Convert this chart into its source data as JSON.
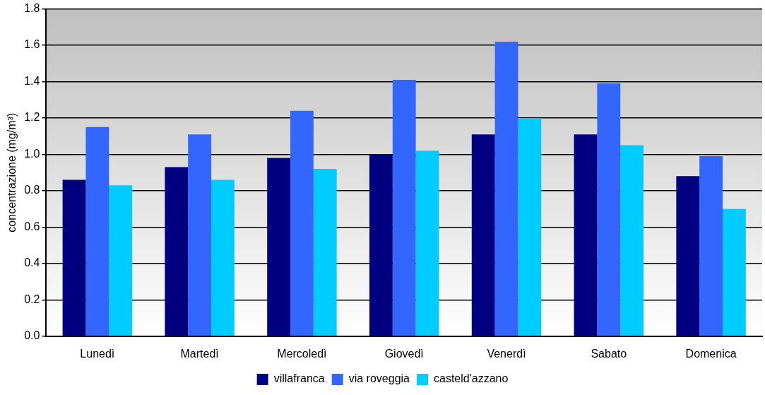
{
  "chart_data": {
    "type": "bar",
    "ylabel": "concentrazione (mg/m³)",
    "categories": [
      "Lunedì",
      "Martedì",
      "Mercoledì",
      "Giovedì",
      "Venerdì",
      "Sabato",
      "Domenica"
    ],
    "series": [
      {
        "name": "villafranca",
        "color": "#000080",
        "values": [
          0.86,
          0.93,
          0.98,
          1.0,
          1.11,
          1.11,
          0.88
        ]
      },
      {
        "name": "via roveggia",
        "color": "#3366ff",
        "values": [
          1.15,
          1.11,
          1.24,
          1.41,
          1.62,
          1.39,
          0.99
        ]
      },
      {
        "name": "casteld'azzano",
        "color": "#00ccff",
        "values": [
          0.83,
          0.86,
          0.92,
          1.02,
          1.2,
          1.05,
          0.7
        ]
      }
    ],
    "ylim": [
      0,
      1.8
    ],
    "yticks": [
      {
        "value": 0,
        "label": "0.0"
      },
      {
        "value": 0.2,
        "label": "0.2"
      },
      {
        "value": 0.4,
        "label": "0.4"
      },
      {
        "value": 0.6,
        "label": "0.6"
      },
      {
        "value": 0.8,
        "label": "0.8"
      },
      {
        "value": 1,
        "label": "1.0"
      },
      {
        "value": 1.2,
        "label": "1.2"
      },
      {
        "value": 1.4,
        "label": "1.4"
      },
      {
        "value": 1.6,
        "label": "1.6"
      },
      {
        "value": 1.8,
        "label": "1.8"
      }
    ],
    "grid": "y",
    "legend": "bottom"
  }
}
